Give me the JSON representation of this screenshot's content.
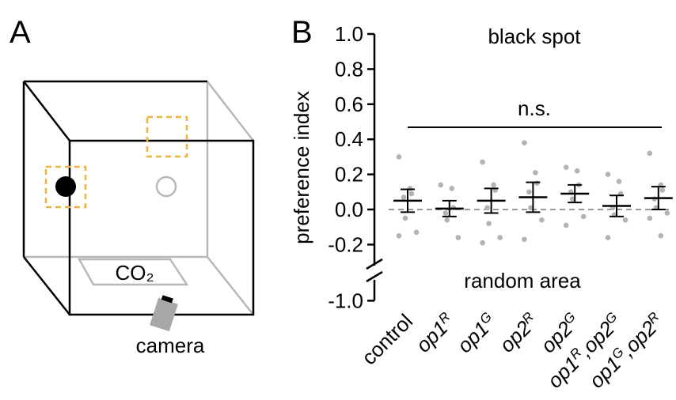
{
  "panel_labels": [
    "A",
    "B"
  ],
  "diagram": {
    "co2": "CO₂",
    "camera": "camera"
  },
  "chart_data": {
    "type": "dot_mean_sem",
    "ylabel": "preference index",
    "top_label": "black spot",
    "bottom_label": "random area",
    "significance": "n.s.",
    "categories": [
      [
        {
          "text": "control"
        }
      ],
      [
        {
          "text": "op1",
          "italic": true
        },
        {
          "text": "R",
          "sup": true,
          "italic": true
        }
      ],
      [
        {
          "text": "op1",
          "italic": true
        },
        {
          "text": "G",
          "sup": true,
          "italic": true
        }
      ],
      [
        {
          "text": "op2",
          "italic": true
        },
        {
          "text": "R",
          "sup": true,
          "italic": true
        }
      ],
      [
        {
          "text": "op2",
          "italic": true
        },
        {
          "text": "G",
          "sup": true,
          "italic": true
        }
      ],
      [
        {
          "text": "op1",
          "italic": true
        },
        {
          "text": "R",
          "sup": true,
          "italic": true
        },
        {
          "text": ",op2",
          "italic": true
        },
        {
          "text": "G",
          "sup": true,
          "italic": true
        }
      ],
      [
        {
          "text": "op1",
          "italic": true
        },
        {
          "text": "G",
          "sup": true,
          "italic": true
        },
        {
          "text": ",op2",
          "italic": true
        },
        {
          "text": "R",
          "sup": true,
          "italic": true
        }
      ]
    ],
    "means": [
      0.05,
      0.005,
      0.05,
      0.07,
      0.09,
      0.02,
      0.065
    ],
    "errors": [
      0.065,
      0.045,
      0.07,
      0.085,
      0.05,
      0.06,
      0.065
    ],
    "points": [
      [
        0.3,
        0.12,
        0.09,
        0.07,
        -0.05,
        -0.13,
        -0.15
      ],
      [
        0.14,
        0.12,
        0.01,
        -0.02,
        -0.06,
        -0.16
      ],
      [
        0.27,
        0.14,
        0.11,
        0.01,
        -0.08,
        -0.16,
        -0.19
      ],
      [
        0.38,
        0.21,
        0.15,
        0.1,
        0.01,
        -0.06,
        -0.17
      ],
      [
        0.24,
        0.22,
        0.14,
        0.1,
        0.06,
        -0.04,
        -0.09
      ],
      [
        0.2,
        0.16,
        0.09,
        0.01,
        -0.03,
        -0.06,
        -0.16
      ],
      [
        0.32,
        0.14,
        0.11,
        0.06,
        0.01,
        -0.02,
        -0.05,
        -0.15
      ]
    ],
    "point_color": "#b3b3b3",
    "mark_color": "#000000",
    "reference_line": 0,
    "axis_break": true,
    "ylim": [
      -1,
      1
    ],
    "yticks": [
      {
        "value": 1,
        "label": "1.0"
      },
      0.8,
      0.6,
      0.4,
      0.2,
      {
        "value": 0,
        "label": "0.0"
      },
      -0.2,
      {
        "value": -1,
        "label": "-1.0"
      }
    ]
  }
}
